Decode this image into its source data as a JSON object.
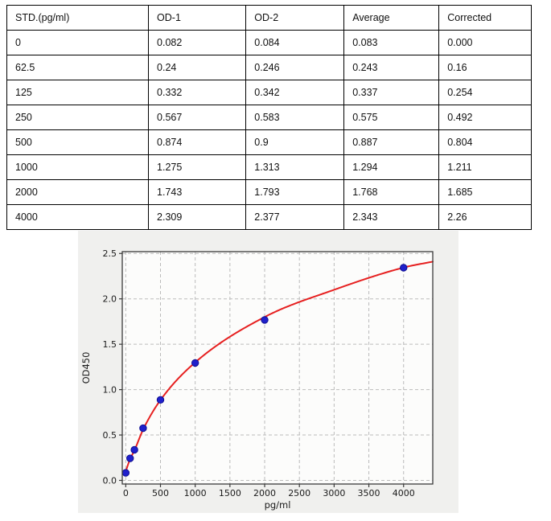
{
  "table": {
    "columns": [
      "STD.(pg/ml)",
      "OD-1",
      "OD-2",
      "Average",
      "Corrected"
    ],
    "rows": [
      [
        "0",
        "0.082",
        "0.084",
        "0.083",
        "0.000"
      ],
      [
        "62.5",
        "0.24",
        "0.246",
        "0.243",
        "0.16"
      ],
      [
        "125",
        "0.332",
        "0.342",
        "0.337",
        "0.254"
      ],
      [
        "250",
        "0.567",
        "0.583",
        "0.575",
        "0.492"
      ],
      [
        "500",
        "0.874",
        "0.9",
        "0.887",
        "0.804"
      ],
      [
        "1000",
        "1.275",
        "1.313",
        "1.294",
        "1.211"
      ],
      [
        "2000",
        "1.743",
        "1.793",
        "1.768",
        "1.685"
      ],
      [
        "4000",
        "2.309",
        "2.377",
        "2.343",
        "2.26"
      ]
    ]
  },
  "chart_data": {
    "type": "scatter",
    "title": "",
    "xlabel": "pg/ml",
    "ylabel": "OD450",
    "x": [
      0,
      62.5,
      125,
      250,
      500,
      1000,
      2000,
      4000
    ],
    "y": [
      0.083,
      0.243,
      0.337,
      0.575,
      0.887,
      1.294,
      1.768,
      2.343
    ],
    "curve": {
      "x": [
        0,
        62.5,
        125,
        250,
        500,
        1000,
        2000,
        3000,
        4000,
        4420
      ],
      "y": [
        0.1,
        0.235,
        0.33,
        0.56,
        0.885,
        1.3,
        1.8,
        2.1,
        2.345,
        2.41
      ]
    },
    "xticks": [
      0,
      500,
      1000,
      1500,
      2000,
      2500,
      3000,
      3500,
      4000
    ],
    "yticks": [
      0.0,
      0.5,
      1.0,
      1.5,
      2.0,
      2.5
    ],
    "xlim": [
      -50,
      4420
    ],
    "ylim": [
      -0.04,
      2.52
    ],
    "grid": true,
    "legend": null,
    "colors": {
      "figure_bg": "#f0f0ee",
      "plot_bg": "#fcfcfb",
      "grid": "#bbbbbb",
      "spine": "#3a3a3a",
      "curve": "#e62020",
      "point_fill": "#2020cc",
      "point_edge": "#0e0e90",
      "text": "#1a1a1a"
    }
  }
}
